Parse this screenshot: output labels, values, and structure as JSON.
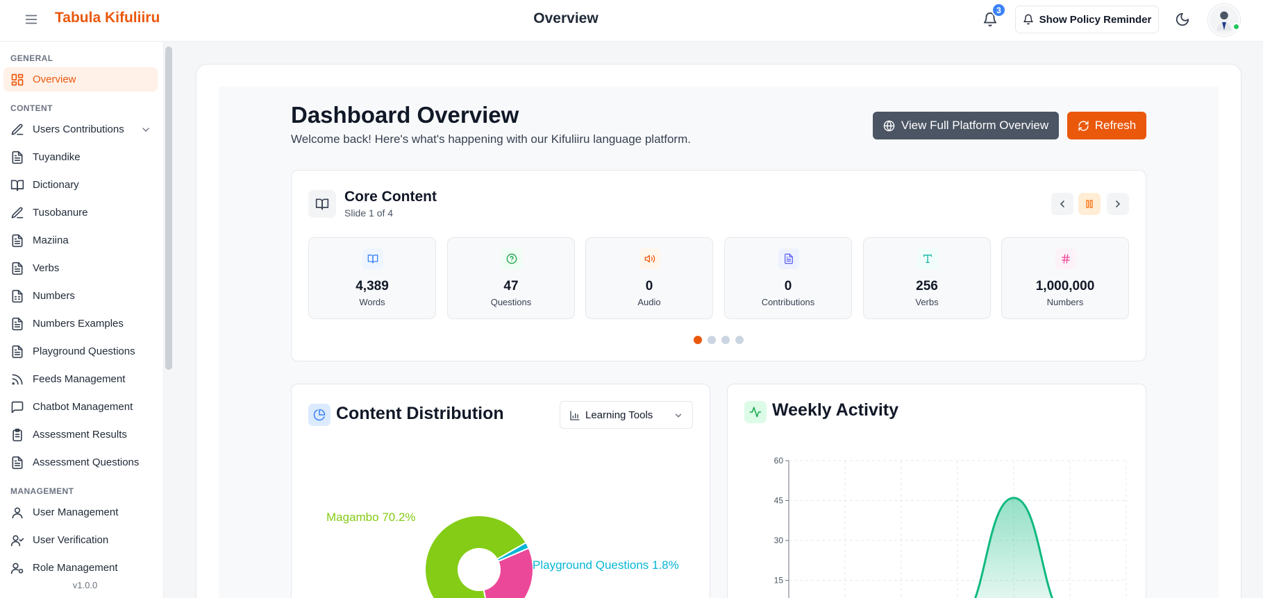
{
  "app": {
    "title": "Tabula Kifuliiru",
    "page_title": "Overview",
    "notification_count": "3",
    "policy_button": "Show Policy Reminder",
    "version": "v1.0.0"
  },
  "sidebar": {
    "sections": {
      "general": "GENERAL",
      "content": "CONTENT",
      "management": "MANAGEMENT"
    },
    "items": [
      {
        "label": "Overview",
        "icon": "layout-grid-icon",
        "active": true
      },
      {
        "label": "Users Contributions",
        "icon": "pen-icon",
        "expandable": true
      },
      {
        "label": "Tuyandike",
        "icon": "file-text-icon"
      },
      {
        "label": "Dictionary",
        "icon": "book-open-icon"
      },
      {
        "label": "Tusobanure",
        "icon": "pen-icon"
      },
      {
        "label": "Maziina",
        "icon": "file-text-icon"
      },
      {
        "label": "Verbs",
        "icon": "file-text-icon"
      },
      {
        "label": "Numbers",
        "icon": "file-spreadsheet-icon"
      },
      {
        "label": "Numbers Examples",
        "icon": "file-text-icon"
      },
      {
        "label": "Playground Questions",
        "icon": "file-text-icon"
      },
      {
        "label": "Feeds Management",
        "icon": "rss-icon"
      },
      {
        "label": "Chatbot Management",
        "icon": "message-square-icon"
      },
      {
        "label": "Assessment Results",
        "icon": "clipboard-list-icon"
      },
      {
        "label": "Assessment Questions",
        "icon": "file-text-icon"
      },
      {
        "label": "User Management",
        "icon": "user-icon"
      },
      {
        "label": "User Verification",
        "icon": "user-check-icon"
      },
      {
        "label": "Role Management",
        "icon": "user-cog-icon"
      }
    ]
  },
  "dashboard": {
    "title": "Dashboard Overview",
    "subtitle": "Welcome back! Here's what's happening with our Kifuliiru language platform.",
    "full_overview_button": "View Full Platform Overview",
    "refresh_button": "Refresh"
  },
  "core": {
    "title": "Core Content",
    "slide": "Slide 1 of 4",
    "current_slide": 1,
    "total_slides": 4,
    "stats": [
      {
        "value": "4,389",
        "label": "Words",
        "icon": "book-open-icon",
        "color": "#3b82f6"
      },
      {
        "value": "47",
        "label": "Questions",
        "icon": "help-circle-icon",
        "color": "#16a34a"
      },
      {
        "value": "0",
        "label": "Audio",
        "icon": "volume-icon",
        "color": "#ea580c"
      },
      {
        "value": "0",
        "label": "Contributions",
        "icon": "file-text-icon",
        "color": "#6366f1"
      },
      {
        "value": "256",
        "label": "Verbs",
        "icon": "type-icon",
        "color": "#14b8a6"
      },
      {
        "value": "1,000,000",
        "label": "Numbers",
        "icon": "hash-icon",
        "color": "#ec4899"
      }
    ]
  },
  "distribution": {
    "title": "Content Distribution",
    "filter": "Learning Tools",
    "label_magambo": "Magambo 70.2%",
    "label_playground": "Playground Questions 1.8%"
  },
  "weekly": {
    "title": "Weekly Activity"
  },
  "chart_data": [
    {
      "type": "pie",
      "title": "Content Distribution",
      "slices": [
        {
          "name": "Magambo",
          "value": 70.2,
          "color": "#84cc16"
        },
        {
          "name": "Playground Questions",
          "value": 1.8,
          "color": "#06b6d4"
        },
        {
          "name": "",
          "value": 28.0,
          "color": "#ec4899"
        }
      ]
    },
    {
      "type": "area",
      "title": "Weekly Activity",
      "ylim": [
        0,
        60
      ],
      "yticks": [
        "60",
        "45",
        "30",
        "15"
      ],
      "x": [
        1,
        2,
        3,
        4,
        5,
        6,
        7
      ],
      "values": [
        0,
        0,
        0,
        0,
        46,
        0,
        0
      ],
      "color": "#10b981"
    }
  ]
}
